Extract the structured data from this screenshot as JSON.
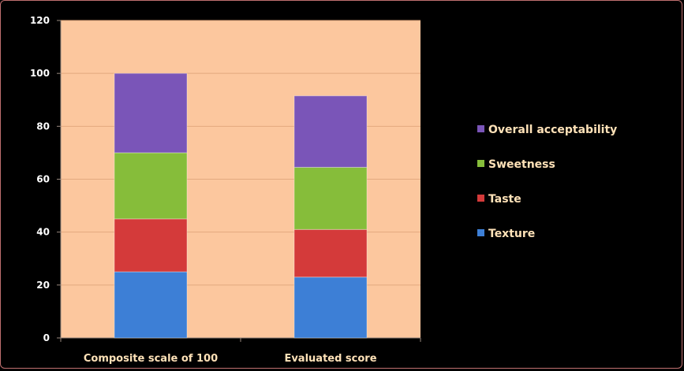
{
  "chart_data": {
    "type": "bar",
    "stacked": true,
    "title": "",
    "xlabel": "",
    "ylabel": "",
    "ylim": [
      0,
      120
    ],
    "yticks": [
      0,
      20,
      40,
      60,
      80,
      100,
      120
    ],
    "grid": true,
    "legend_position": "right",
    "categories": [
      "Composite scale of 100",
      "Evaluated score"
    ],
    "series": [
      {
        "name": "Texture",
        "values": [
          25,
          23
        ],
        "color": "#3d7fd6"
      },
      {
        "name": "Taste",
        "values": [
          20,
          18
        ],
        "color": "#d43a3a"
      },
      {
        "name": "Sweetness",
        "values": [
          25,
          23.5
        ],
        "color": "#86bd3a"
      },
      {
        "name": "Overall acceptability",
        "values": [
          30,
          27
        ],
        "color": "#7a55b8"
      }
    ],
    "plot_background": "#fcc79e",
    "page_background": "#000000"
  }
}
